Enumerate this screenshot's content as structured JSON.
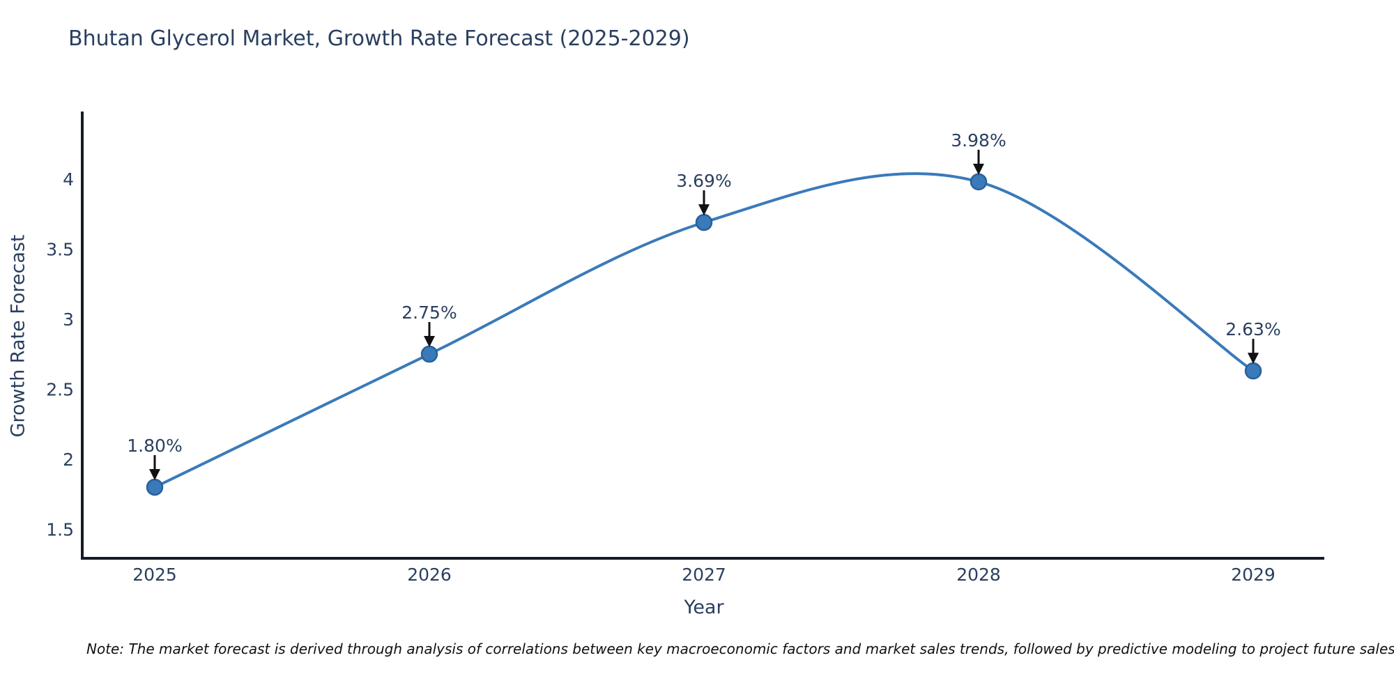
{
  "note": {
    "text": "Note: The market forecast is derived through analysis of correlations between key macroeconomic factors and market sales trends, followed by predictive modeling to project future sales"
  },
  "chart_data": {
    "type": "line",
    "title": "Bhutan Glycerol Market, Growth Rate Forecast (2025-2029)",
    "xlabel": "Year",
    "ylabel": "Growth Rate Forecast",
    "categories": [
      "2025",
      "2026",
      "2027",
      "2028",
      "2029"
    ],
    "values": [
      1.8,
      2.75,
      3.69,
      3.98,
      2.63
    ],
    "point_labels": [
      "1.80%",
      "2.75%",
      "3.69%",
      "3.98%",
      "2.63%"
    ],
    "y_ticks": [
      "1.5",
      "2",
      "2.5",
      "3",
      "3.5",
      "4"
    ],
    "y_tick_values": [
      1.5,
      2,
      2.5,
      3,
      3.5,
      4
    ],
    "ylim": [
      1.3,
      4.5
    ],
    "line_shape": "spline",
    "grid": false,
    "legend_position": "none",
    "colors": {
      "line": "#3a7aba",
      "marker_fill": "#3a7aba",
      "marker_edge": "#2a6099",
      "axis": "#141a26",
      "text": "#2a3f5f",
      "arrow": "#111111"
    }
  }
}
